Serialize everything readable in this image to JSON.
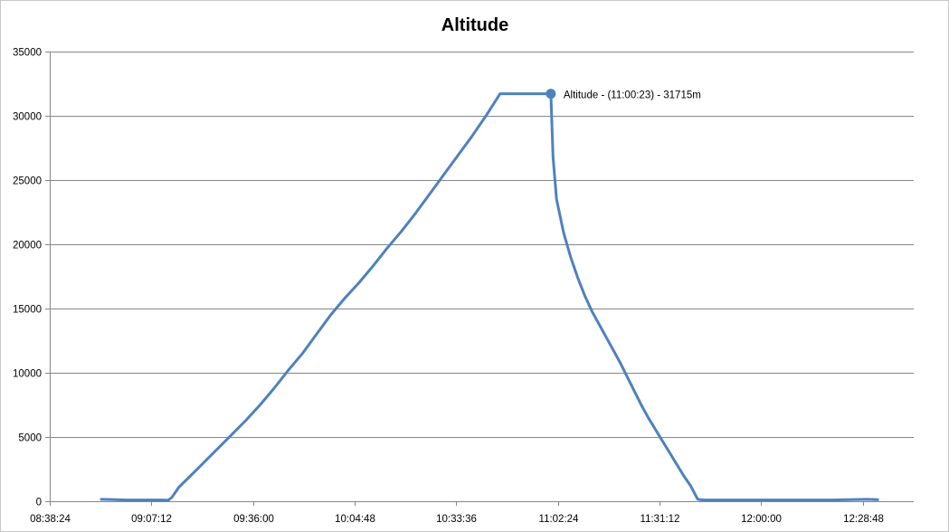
{
  "chart_data": {
    "type": "line",
    "title": "Altitude",
    "xlabel": "",
    "ylabel": "",
    "x_unit": "time",
    "xlim": [
      "08:38:24",
      "12:43:12"
    ],
    "ylim": [
      0,
      35000
    ],
    "y_ticks": [
      0,
      5000,
      10000,
      15000,
      20000,
      25000,
      30000,
      35000
    ],
    "x_ticks": [
      "08:38:24",
      "09:07:12",
      "09:36:00",
      "10:04:48",
      "10:33:36",
      "11:02:24",
      "11:31:12",
      "12:00:00",
      "12:28:48"
    ],
    "grid": {
      "horizontal": true,
      "vertical": false
    },
    "legend": "none",
    "colors": {
      "line": "#4f81bd",
      "grid": "#868686",
      "axis": "#868686"
    },
    "series": [
      {
        "x": [
          "08:53:00",
          "09:00:00",
          "09:05:00",
          "09:10:00",
          "09:12:00",
          "09:13:00",
          "09:15:00",
          "09:18:00",
          "09:22:00",
          "09:26:00",
          "09:30:00",
          "09:34:00",
          "09:38:00",
          "09:42:00",
          "09:46:00",
          "09:50:00",
          "09:54:00",
          "09:58:00",
          "10:02:00",
          "10:06:00",
          "10:10:00",
          "10:14:00",
          "10:18:00",
          "10:22:00",
          "10:26:00",
          "10:30:00",
          "10:34:00",
          "10:38:00",
          "10:42:00",
          "10:46:00",
          "10:50:00",
          "10:54:00",
          "10:58:00",
          "11:00:23",
          "11:01:00",
          "11:02:00",
          "11:04:00",
          "11:06:00",
          "11:08:00",
          "11:10:00",
          "11:12:00",
          "11:14:00",
          "11:16:00",
          "11:18:00",
          "11:20:00",
          "11:22:00",
          "11:24:00",
          "11:26:00",
          "11:28:00",
          "11:30:00",
          "11:32:00",
          "11:34:00",
          "11:36:00",
          "11:38:00",
          "11:40:00",
          "11:42:00",
          "11:43:30",
          "11:45:00",
          "11:50:00",
          "12:00:00",
          "12:10:00",
          "12:20:00",
          "12:30:00",
          "12:33:00"
        ],
        "y": [
          150,
          100,
          100,
          100,
          80,
          300,
          1100,
          1900,
          3000,
          4100,
          5200,
          6300,
          7500,
          8800,
          10200,
          11500,
          13000,
          14500,
          15800,
          17000,
          18300,
          19700,
          21000,
          22400,
          23900,
          25400,
          26900,
          28400,
          30000,
          31715,
          31715,
          31715,
          31715,
          31715,
          26800,
          23500,
          20900,
          19000,
          17400,
          16000,
          14800,
          13800,
          12800,
          11800,
          10800,
          9700,
          8600,
          7500,
          6500,
          5600,
          4700,
          3800,
          2900,
          2000,
          1200,
          150,
          100,
          100,
          100,
          100,
          100,
          100,
          150,
          120
        ]
      }
    ],
    "annotation": {
      "x": "11:00:23",
      "y": 31715,
      "text": "Altitude - (11:00:23) - 31715m"
    }
  }
}
